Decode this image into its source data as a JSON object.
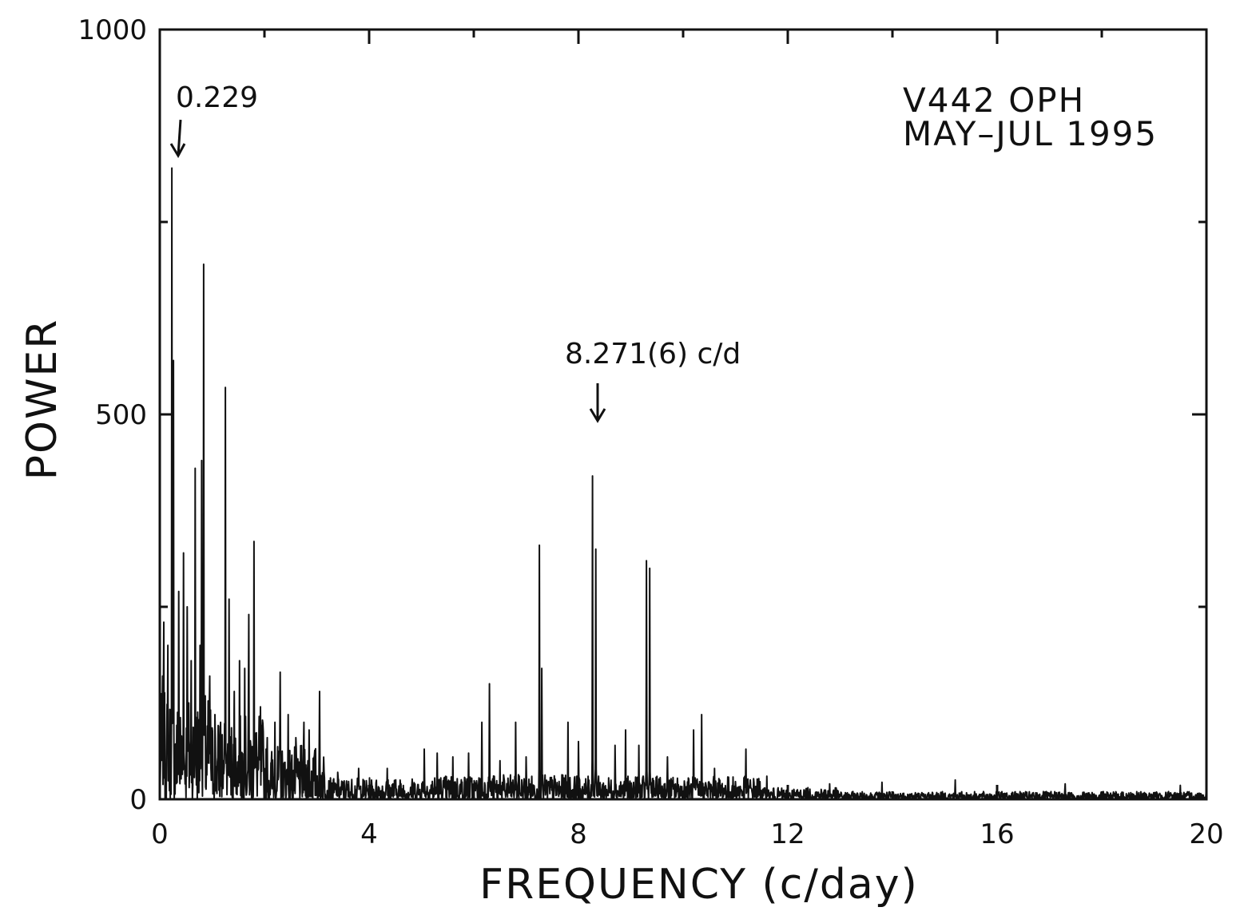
{
  "chart_data": {
    "type": "line",
    "title_lines": [
      "V442 OPH",
      "MAY–JUL 1995"
    ],
    "xlabel": "FREQUENCY (c/day)",
    "ylabel": "POWER",
    "xlim": [
      0,
      20
    ],
    "ylim": [
      0,
      1000
    ],
    "x_ticks": [
      "0",
      "4",
      "8",
      "12",
      "16",
      "20"
    ],
    "y_ticks": [
      "0",
      "500",
      "1000"
    ],
    "x_minor_step": 2,
    "y_minor_step": 250,
    "grid": false,
    "line_color": "#111111",
    "annotations": [
      {
        "text": "0.229",
        "x": 0.229,
        "y": 820
      },
      {
        "text": "8.271(6) c/d",
        "x": 8.271,
        "y": 420
      }
    ],
    "peaks": [
      {
        "x": 0.05,
        "y": 160
      },
      {
        "x": 0.08,
        "y": 230
      },
      {
        "x": 0.15,
        "y": 200
      },
      {
        "x": 0.229,
        "y": 820
      },
      {
        "x": 0.26,
        "y": 570
      },
      {
        "x": 0.36,
        "y": 270
      },
      {
        "x": 0.45,
        "y": 320
      },
      {
        "x": 0.52,
        "y": 250
      },
      {
        "x": 0.6,
        "y": 180
      },
      {
        "x": 0.68,
        "y": 430
      },
      {
        "x": 0.77,
        "y": 200
      },
      {
        "x": 0.8,
        "y": 440
      },
      {
        "x": 0.84,
        "y": 695
      },
      {
        "x": 0.95,
        "y": 160
      },
      {
        "x": 1.05,
        "y": 110
      },
      {
        "x": 1.16,
        "y": 100
      },
      {
        "x": 1.25,
        "y": 535
      },
      {
        "x": 1.32,
        "y": 260
      },
      {
        "x": 1.42,
        "y": 140
      },
      {
        "x": 1.52,
        "y": 180
      },
      {
        "x": 1.62,
        "y": 170
      },
      {
        "x": 1.7,
        "y": 240
      },
      {
        "x": 1.8,
        "y": 335
      },
      {
        "x": 1.92,
        "y": 120
      },
      {
        "x": 2.05,
        "y": 80
      },
      {
        "x": 2.2,
        "y": 100
      },
      {
        "x": 2.3,
        "y": 165
      },
      {
        "x": 2.45,
        "y": 110
      },
      {
        "x": 2.6,
        "y": 80
      },
      {
        "x": 2.75,
        "y": 100
      },
      {
        "x": 2.85,
        "y": 90
      },
      {
        "x": 3.05,
        "y": 140
      },
      {
        "x": 3.4,
        "y": 35
      },
      {
        "x": 3.8,
        "y": 40
      },
      {
        "x": 4.35,
        "y": 40
      },
      {
        "x": 5.05,
        "y": 65
      },
      {
        "x": 5.3,
        "y": 60
      },
      {
        "x": 5.6,
        "y": 55
      },
      {
        "x": 5.9,
        "y": 60
      },
      {
        "x": 6.15,
        "y": 100
      },
      {
        "x": 6.3,
        "y": 150
      },
      {
        "x": 6.5,
        "y": 50
      },
      {
        "x": 6.8,
        "y": 100
      },
      {
        "x": 7.0,
        "y": 55
      },
      {
        "x": 7.25,
        "y": 330
      },
      {
        "x": 7.3,
        "y": 170
      },
      {
        "x": 7.8,
        "y": 100
      },
      {
        "x": 8.0,
        "y": 75
      },
      {
        "x": 8.271,
        "y": 420
      },
      {
        "x": 8.33,
        "y": 325
      },
      {
        "x": 8.7,
        "y": 70
      },
      {
        "x": 8.9,
        "y": 90
      },
      {
        "x": 9.15,
        "y": 70
      },
      {
        "x": 9.3,
        "y": 310
      },
      {
        "x": 9.36,
        "y": 300
      },
      {
        "x": 9.7,
        "y": 55
      },
      {
        "x": 10.2,
        "y": 90
      },
      {
        "x": 10.35,
        "y": 110
      },
      {
        "x": 10.6,
        "y": 40
      },
      {
        "x": 11.2,
        "y": 65
      },
      {
        "x": 11.6,
        "y": 30
      },
      {
        "x": 12.8,
        "y": 20
      },
      {
        "x": 13.8,
        "y": 22
      },
      {
        "x": 15.2,
        "y": 25
      },
      {
        "x": 17.3,
        "y": 20
      },
      {
        "x": 19.5,
        "y": 18
      }
    ]
  }
}
